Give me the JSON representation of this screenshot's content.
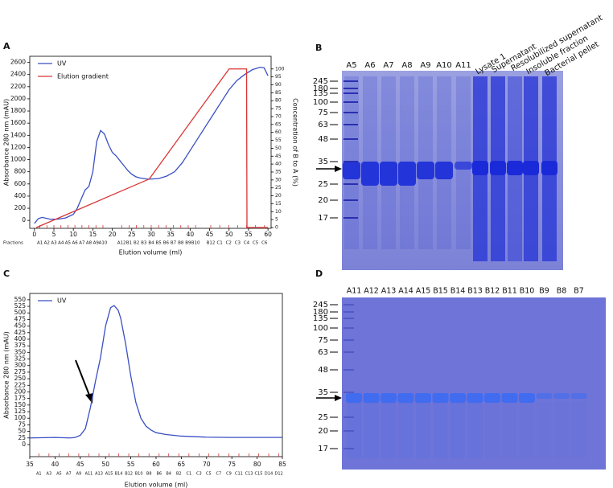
{
  "panel_labels": [
    "A",
    "B",
    "C",
    "D"
  ],
  "chart_data": [
    {
      "type": "line",
      "xlabel": "Elution volume (ml)",
      "ylabel": "Absorbance 280 nm (mAU)",
      "y2label": "Concentration of B to A (%)",
      "xlim": [
        -1.2,
        60.8
      ],
      "xticks": [
        0,
        5,
        10,
        15,
        20,
        25,
        30,
        35,
        40,
        45,
        50,
        55,
        60
      ],
      "ylim": [
        -130,
        2700
      ],
      "yticks": [
        0,
        200,
        400,
        600,
        800,
        1000,
        1200,
        1400,
        1600,
        1800,
        2000,
        2200,
        2400,
        2600
      ],
      "y2lim": [
        -0.5,
        108
      ],
      "y2ticks": [
        0,
        5,
        10,
        15,
        20,
        25,
        30,
        35,
        40,
        45,
        50,
        55,
        60,
        65,
        70,
        75,
        80,
        85,
        90,
        95,
        100
      ],
      "legend": "upper left",
      "fractions_label": "Fractions",
      "fractions": [
        "A1",
        "A2",
        "A3",
        "A4",
        "A5",
        "A6",
        "A7",
        "A8",
        "A9",
        "A10",
        "A12",
        "B1",
        "B2",
        "B3",
        "B4",
        "B5",
        "B6",
        "B7",
        "B8",
        "B9",
        "B10",
        "B12",
        "C1",
        "C2",
        "C3",
        "C4",
        "C5",
        "C6"
      ],
      "fraction_x": [
        1.4,
        3.2,
        5.0,
        6.8,
        8.6,
        10.4,
        12.2,
        14.0,
        15.8,
        17.6,
        22.4,
        24.3,
        26.2,
        28.1,
        30.0,
        31.9,
        33.8,
        35.7,
        37.6,
        39.5,
        41.4,
        45.3,
        47.6,
        49.9,
        52.2,
        54.5,
        56.8,
        59.1
      ],
      "series": [
        {
          "name": "UV",
          "color": "#3a4fc4",
          "x": [
            0,
            1,
            2,
            4,
            6,
            8,
            10,
            11,
            12,
            13,
            14,
            15,
            16,
            17,
            18,
            19,
            20,
            21,
            22,
            23,
            24,
            25,
            26,
            27,
            28,
            29,
            30,
            32,
            34,
            36,
            38,
            40,
            42,
            44,
            46,
            48,
            50,
            52,
            54,
            56,
            58,
            59,
            60
          ],
          "values": [
            -50,
            30,
            50,
            20,
            20,
            40,
            100,
            200,
            350,
            500,
            560,
            800,
            1300,
            1480,
            1420,
            1250,
            1120,
            1060,
            980,
            900,
            820,
            760,
            720,
            700,
            690,
            680,
            680,
            690,
            730,
            800,
            950,
            1150,
            1350,
            1550,
            1750,
            1950,
            2150,
            2300,
            2400,
            2480,
            2520,
            2510,
            2380
          ]
        },
        {
          "name": "Elution gradient",
          "color": "#d93434",
          "axis": "y2",
          "x": [
            0.5,
            29.5,
            50,
            54.5,
            54.6,
            60
          ],
          "values": [
            0,
            30.6,
            100,
            100,
            0,
            0
          ]
        }
      ]
    },
    {
      "type": "line",
      "xlabel": "Elution volume (ml)",
      "ylabel": "Absorbance 280 nm (mAU)",
      "xlim": [
        35,
        85
      ],
      "xticks": [
        35,
        40,
        45,
        50,
        55,
        60,
        65,
        70,
        75,
        80,
        85
      ],
      "ylim": [
        -46,
        574
      ],
      "yticks": [
        0,
        25,
        50,
        75,
        100,
        125,
        150,
        175,
        200,
        225,
        250,
        275,
        300,
        325,
        350,
        375,
        400,
        425,
        450,
        475,
        500,
        525,
        550
      ],
      "legend": "upper left",
      "fractions": [
        "A1",
        "A3",
        "A5",
        "A7",
        "A9",
        "A11",
        "A13",
        "A15",
        "B14",
        "B12",
        "B10",
        "B8",
        "B6",
        "B4",
        "B2",
        "C1",
        "C3",
        "C5",
        "C7",
        "C9",
        "C11",
        "C13",
        "C15",
        "D14",
        "D12"
      ],
      "fraction_x": [
        36.8,
        38.8,
        40.8,
        42.7,
        44.7,
        46.7,
        48.7,
        50.7,
        52.6,
        54.6,
        56.6,
        58.6,
        60.6,
        62.5,
        64.5,
        66.5,
        68.5,
        70.4,
        72.4,
        74.4,
        76.4,
        78.4,
        80.3,
        82.3,
        84.3
      ],
      "series": [
        {
          "name": "UV",
          "color": "#3a4fc4",
          "x": [
            35,
            40,
            43,
            44,
            45,
            46,
            47,
            48,
            49,
            50,
            51,
            51.7,
            52.5,
            53,
            54,
            55,
            56,
            57,
            58,
            59,
            60,
            62,
            65,
            70,
            75,
            85
          ],
          "values": [
            25,
            27,
            25,
            27,
            35,
            60,
            140,
            240,
            330,
            450,
            520,
            528,
            510,
            480,
            380,
            260,
            160,
            100,
            70,
            55,
            45,
            38,
            32,
            28,
            27,
            27
          ]
        }
      ]
    }
  ],
  "gels": [
    {
      "lanes": [
        "A5",
        "A6",
        "A7",
        "A8",
        "A9",
        "A10",
        "A11"
      ],
      "rotated_lanes": [
        "Lysate 1",
        "Supernatant",
        "Resolubilized supernatant",
        "Insoluble fraction",
        "Bacterial pellet"
      ],
      "markers": [
        245,
        180,
        135,
        100,
        75,
        63,
        48,
        35,
        25,
        20,
        17
      ]
    },
    {
      "lanes": [
        "A11",
        "A12",
        "A13",
        "A14",
        "A15",
        "B15",
        "B14",
        "B13",
        "B12",
        "B11",
        "B10",
        "B9",
        "B8",
        "B7"
      ],
      "markers": [
        245,
        180,
        135,
        100,
        75,
        63,
        48,
        35,
        25,
        20,
        17
      ]
    }
  ]
}
